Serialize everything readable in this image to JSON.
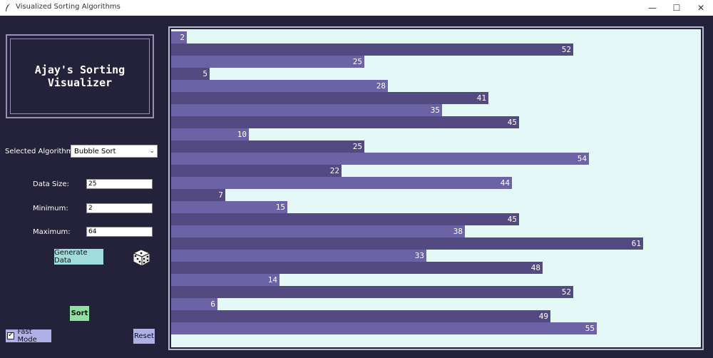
{
  "window": {
    "title": "Visualized Sorting Algorithms",
    "minimize": "—",
    "maximize": "☐",
    "close": "✕"
  },
  "logo": {
    "text": "Ajay's Sorting Visualizer"
  },
  "algorithm": {
    "label": "Selected Algorithm:",
    "value": "Bubble Sort",
    "caret": "⌄"
  },
  "fields": {
    "size_label": "Data Size:",
    "size_value": "25",
    "min_label": "Minimum:",
    "min_value": "2",
    "max_label": "Maximum:",
    "max_value": "64"
  },
  "buttons": {
    "generate": "Generate Data",
    "sort": "Sort",
    "reset": "Reset",
    "fast_mode": "Fast Mode",
    "fast_mode_checked": true,
    "check_mark": "✓"
  },
  "colors": {
    "background": "#24223a",
    "canvas": "#e4f8f8",
    "bar_dark": "#524a80",
    "bar_light": "#6c63a6"
  },
  "chart_data": {
    "type": "bar",
    "orientation": "horizontal",
    "values": [
      2,
      52,
      25,
      5,
      28,
      41,
      35,
      45,
      10,
      25,
      54,
      22,
      44,
      7,
      15,
      45,
      38,
      61,
      33,
      48,
      14,
      52,
      6,
      49,
      55
    ],
    "xlim": [
      0,
      61
    ]
  }
}
